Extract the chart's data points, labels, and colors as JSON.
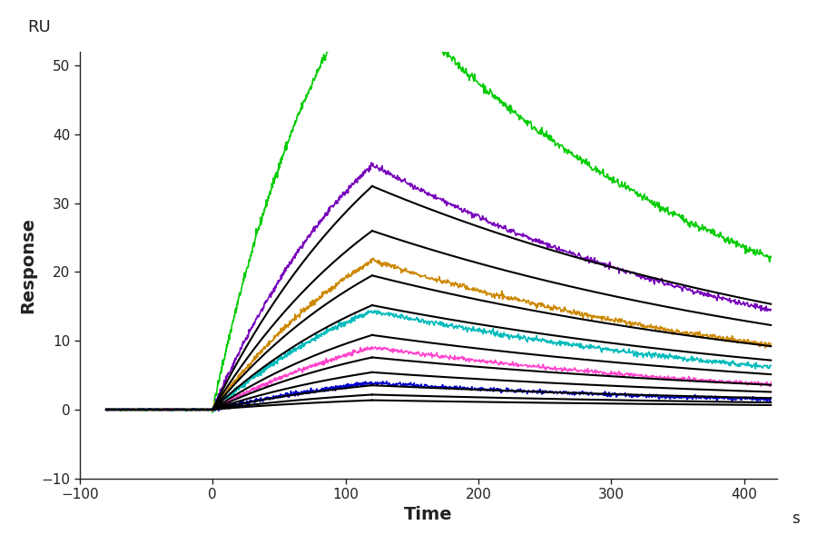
{
  "title": "",
  "xlabel": "Time",
  "ylabel": "Response",
  "xlabel_suffix": "s",
  "ru_label": "RU",
  "xlim": [
    -100,
    425
  ],
  "ylim": [
    -10,
    52
  ],
  "xticks": [
    -100,
    0,
    100,
    200,
    300,
    400
  ],
  "yticks": [
    -10,
    0,
    10,
    20,
    30,
    40,
    50
  ],
  "t_assoc_start": 0,
  "t_assoc_end": 120,
  "t_dissoc_end": 420,
  "background": "#ffffff",
  "fit_curves": [
    {
      "Rmax": 60,
      "kon": 0.0065,
      "koff": 0.0025
    },
    {
      "Rmax": 48,
      "kon": 0.0065,
      "koff": 0.0025
    },
    {
      "Rmax": 36,
      "kon": 0.0065,
      "koff": 0.0025
    },
    {
      "Rmax": 28,
      "kon": 0.0065,
      "koff": 0.0025
    },
    {
      "Rmax": 20,
      "kon": 0.0065,
      "koff": 0.0025
    },
    {
      "Rmax": 14,
      "kon": 0.0065,
      "koff": 0.0025
    },
    {
      "Rmax": 10,
      "kon": 0.0065,
      "koff": 0.0025
    },
    {
      "Rmax": 6.5,
      "kon": 0.0065,
      "koff": 0.0025
    },
    {
      "Rmax": 4.0,
      "kon": 0.0065,
      "koff": 0.0025
    },
    {
      "Rmax": 2.5,
      "kon": 0.0065,
      "koff": 0.0025
    }
  ],
  "data_curves": [
    {
      "color": "#00cc00",
      "Rmax": 90,
      "kon": 0.01,
      "koff": 0.0035,
      "noise": 0.3
    },
    {
      "color": "#7700bb",
      "Rmax": 60,
      "kon": 0.0075,
      "koff": 0.003,
      "noise": 0.2
    },
    {
      "color": "#cc8800",
      "Rmax": 40,
      "kon": 0.0065,
      "koff": 0.0028,
      "noise": 0.2
    },
    {
      "color": "#00bbbb",
      "Rmax": 28,
      "kon": 0.006,
      "koff": 0.0028,
      "noise": 0.2
    },
    {
      "color": "#ff44cc",
      "Rmax": 18,
      "kon": 0.0058,
      "koff": 0.003,
      "noise": 0.15
    },
    {
      "color": "#0000cc",
      "Rmax": 8,
      "kon": 0.0055,
      "koff": 0.0032,
      "noise": 0.15
    }
  ]
}
